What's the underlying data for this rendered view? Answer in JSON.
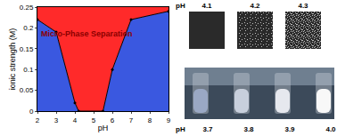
{
  "chart_data": {
    "type": "line",
    "x": [
      2,
      3,
      4,
      4.2,
      5.5,
      6,
      7,
      9
    ],
    "values": [
      0.22,
      0.19,
      0.02,
      0,
      0,
      0.1,
      0.22,
      0.24
    ],
    "color": "#000000",
    "marker": "circle",
    "x_label": "pH",
    "y_label": "ionic strength (M)",
    "annotations": [
      "Micro-Phase Separation"
    ],
    "xlim": [
      2,
      9
    ],
    "xticks": [
      2,
      3,
      4,
      5,
      6,
      7,
      8,
      9
    ],
    "ylim": [
      0,
      0.25
    ],
    "yticks": [
      0,
      0.05,
      0.1,
      0.15,
      0.2,
      0.25
    ],
    "grid": false
  },
  "images": {
    "top_row": {
      "label": "pH",
      "items": [
        "4.1",
        "4.2",
        "4.3"
      ]
    },
    "bottom_row": {
      "label": "pH",
      "items": [
        "3.7",
        "3.8",
        "3.9",
        "4.0"
      ]
    }
  }
}
